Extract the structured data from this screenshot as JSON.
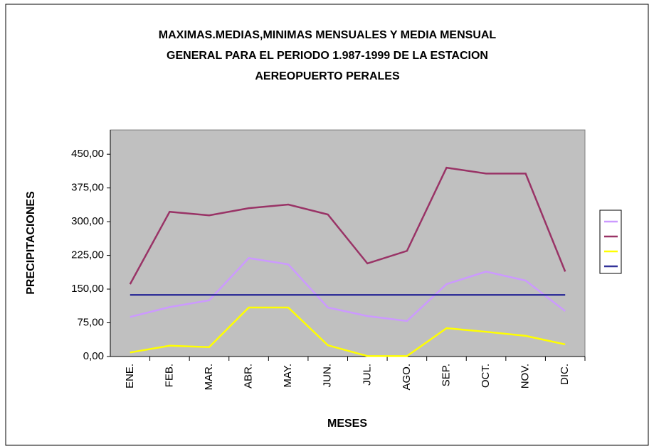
{
  "chart_data": {
    "type": "line",
    "title": [
      "MAXIMAS.MEDIAS,MINIMAS MENSUALES Y MEDIA MENSUAL",
      "GENERAL PARA EL PERIODO 1.987-1999 DE LA ESTACION",
      "AEREOPUERTO PERALES"
    ],
    "x_label": "MESES",
    "y_label": "PRECIPITACIONES",
    "categories": [
      "ENE.",
      "FEB.",
      "MAR.",
      "ABR.",
      "MAY.",
      "JUN.",
      "JUL.",
      "AGO.",
      "SEP.",
      "OCT.",
      "NOV.",
      "DIC."
    ],
    "series": [
      {
        "color": "#cc99ff",
        "values": [
          88,
          110,
          125,
          219,
          205,
          109,
          90,
          79,
          161,
          189,
          169,
          101
        ]
      },
      {
        "color": "#993366",
        "values": [
          161,
          322,
          314,
          330,
          338,
          316,
          207,
          235,
          420,
          407,
          407,
          189
        ]
      },
      {
        "color": "#ffff00",
        "values": [
          9,
          24,
          21,
          109,
          109,
          25,
          1,
          1,
          63,
          55,
          46,
          27
        ]
      },
      {
        "color": "#333399",
        "values": [
          137,
          137,
          137,
          137,
          137,
          137,
          137,
          137,
          137,
          137,
          137,
          137
        ]
      }
    ],
    "ylim": [
      0,
      504
    ],
    "yticks": [
      {
        "value": 0,
        "label": "0,00"
      },
      {
        "value": 75,
        "label": "75,00"
      },
      {
        "value": 150,
        "label": "150,00"
      },
      {
        "value": 225,
        "label": "225,00"
      },
      {
        "value": 300,
        "label": "300,00"
      },
      {
        "value": 375,
        "label": "375,00"
      },
      {
        "value": 450,
        "label": "450,00"
      }
    ],
    "grid": false,
    "legend": "right"
  }
}
